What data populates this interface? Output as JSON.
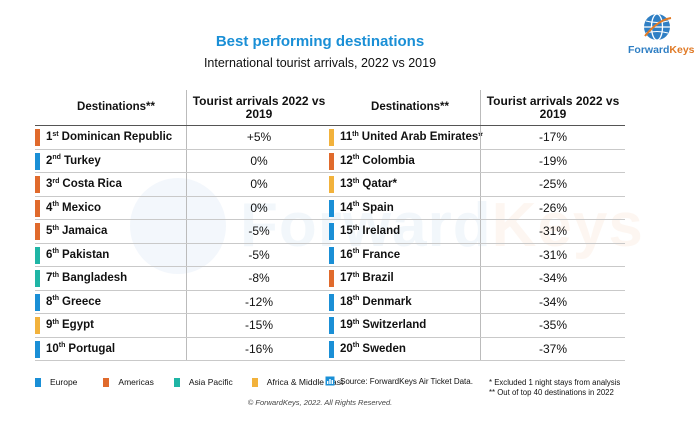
{
  "title": "Best performing destinations",
  "subtitle": "International tourist arrivals, 2022 vs 2019",
  "logo": {
    "brand_a": "Forward",
    "brand_b": "Keys"
  },
  "watermark": {
    "part_a": "Forward",
    "part_b": "Keys"
  },
  "table_headers": {
    "destinations": "Destinations**",
    "arrivals": "Tourist arrivals 2022 vs 2019"
  },
  "colors": {
    "Europe": "#1a8fd6",
    "Americas": "#e06a2c",
    "Asia Pacific": "#1fb5a5",
    "Africa & Middle East": "#f2b23c"
  },
  "left_rows": [
    {
      "rank": "1",
      "suffix": "st",
      "name": "Dominican Republic",
      "value": "+5%",
      "region": "Americas"
    },
    {
      "rank": "2",
      "suffix": "nd",
      "name": "Turkey",
      "value": "0%",
      "region": "Europe"
    },
    {
      "rank": "3",
      "suffix": "rd",
      "name": "Costa Rica",
      "value": "0%",
      "region": "Americas"
    },
    {
      "rank": "4",
      "suffix": "th",
      "name": "Mexico",
      "value": "0%",
      "region": "Americas"
    },
    {
      "rank": "5",
      "suffix": "th",
      "name": "Jamaica",
      "value": "-5%",
      "region": "Americas"
    },
    {
      "rank": "6",
      "suffix": "th",
      "name": "Pakistan",
      "value": "-5%",
      "region": "Asia Pacific"
    },
    {
      "rank": "7",
      "suffix": "th",
      "name": "Bangladesh",
      "value": "-8%",
      "region": "Asia Pacific"
    },
    {
      "rank": "8",
      "suffix": "th",
      "name": "Greece",
      "value": "-12%",
      "region": "Europe"
    },
    {
      "rank": "9",
      "suffix": "th",
      "name": "Egypt",
      "value": "-15%",
      "region": "Africa & Middle East"
    },
    {
      "rank": "10",
      "suffix": "th",
      "name": "Portugal",
      "value": "-16%",
      "region": "Europe"
    }
  ],
  "right_rows": [
    {
      "rank": "11",
      "suffix": "th",
      "name": "United Arab Emirates*",
      "value": "-17%",
      "region": "Africa & Middle East"
    },
    {
      "rank": "12",
      "suffix": "th",
      "name": "Colombia",
      "value": "-19%",
      "region": "Americas"
    },
    {
      "rank": "13",
      "suffix": "th",
      "name": "Qatar*",
      "value": "-25%",
      "region": "Africa & Middle East"
    },
    {
      "rank": "14",
      "suffix": "th",
      "name": "Spain",
      "value": "-26%",
      "region": "Europe"
    },
    {
      "rank": "15",
      "suffix": "th",
      "name": "Ireland",
      "value": "-31%",
      "region": "Europe"
    },
    {
      "rank": "16",
      "suffix": "th",
      "name": "France",
      "value": "-31%",
      "region": "Europe"
    },
    {
      "rank": "17",
      "suffix": "th",
      "name": "Brazil",
      "value": "-34%",
      "region": "Americas"
    },
    {
      "rank": "18",
      "suffix": "th",
      "name": "Denmark",
      "value": "-34%",
      "region": "Europe"
    },
    {
      "rank": "19",
      "suffix": "th",
      "name": "Switzerland",
      "value": "-35%",
      "region": "Europe"
    },
    {
      "rank": "20",
      "suffix": "th",
      "name": "Sweden",
      "value": "-37%",
      "region": "Europe"
    }
  ],
  "legend": [
    "Europe",
    "Americas",
    "Asia Pacific",
    "Africa & Middle East"
  ],
  "source": "Source: ForwardKeys Air Ticket Data.",
  "source_icon": "document-chart-icon",
  "notes": [
    "* Excluded 1 night stays from analysis",
    "** Out of top 40 destinations in 2022"
  ],
  "copyright": "© ForwardKeys, 2022. All Rights Reserved."
}
